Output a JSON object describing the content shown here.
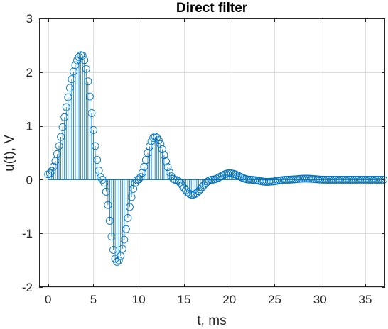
{
  "chart_data": {
    "type": "stem",
    "title": "Direct filter",
    "xlabel": "t, ms",
    "ylabel": "u(t), V",
    "xlim": [
      -1,
      37.2
    ],
    "ylim": [
      -2,
      3
    ],
    "xticks": [
      0,
      5,
      10,
      15,
      20,
      25,
      30,
      35
    ],
    "yticks": [
      -2,
      -1,
      0,
      1,
      2,
      3
    ],
    "xtick_labels": [
      "0",
      "5",
      "10",
      "15",
      "20",
      "25",
      "30",
      "35"
    ],
    "ytick_labels": [
      "-2",
      "-1",
      "0",
      "1",
      "2",
      "3"
    ],
    "grid": true,
    "marker": "open-circle",
    "color": "#0072BD",
    "sample_interval_ms": 0.2,
    "t_start": 0,
    "t_end": 37,
    "peaks": [
      {
        "t": 0.0,
        "u": 0.1
      },
      {
        "t": 3.7,
        "u": 2.32
      },
      {
        "t": 6.0,
        "u": 0.0
      },
      {
        "t": 7.6,
        "u": -1.53
      },
      {
        "t": 9.9,
        "u": 0.0
      },
      {
        "t": 11.8,
        "u": 0.8
      },
      {
        "t": 14.0,
        "u": 0.0
      },
      {
        "t": 15.9,
        "u": -0.28
      },
      {
        "t": 18.1,
        "u": 0.0
      },
      {
        "t": 20.0,
        "u": 0.12
      },
      {
        "t": 22.3,
        "u": 0.0
      },
      {
        "t": 24.2,
        "u": -0.04
      },
      {
        "t": 26.4,
        "u": 0.0
      },
      {
        "t": 28.4,
        "u": 0.02
      },
      {
        "t": 30.6,
        "u": 0.0
      },
      {
        "t": 37.0,
        "u": 0.0
      }
    ]
  }
}
